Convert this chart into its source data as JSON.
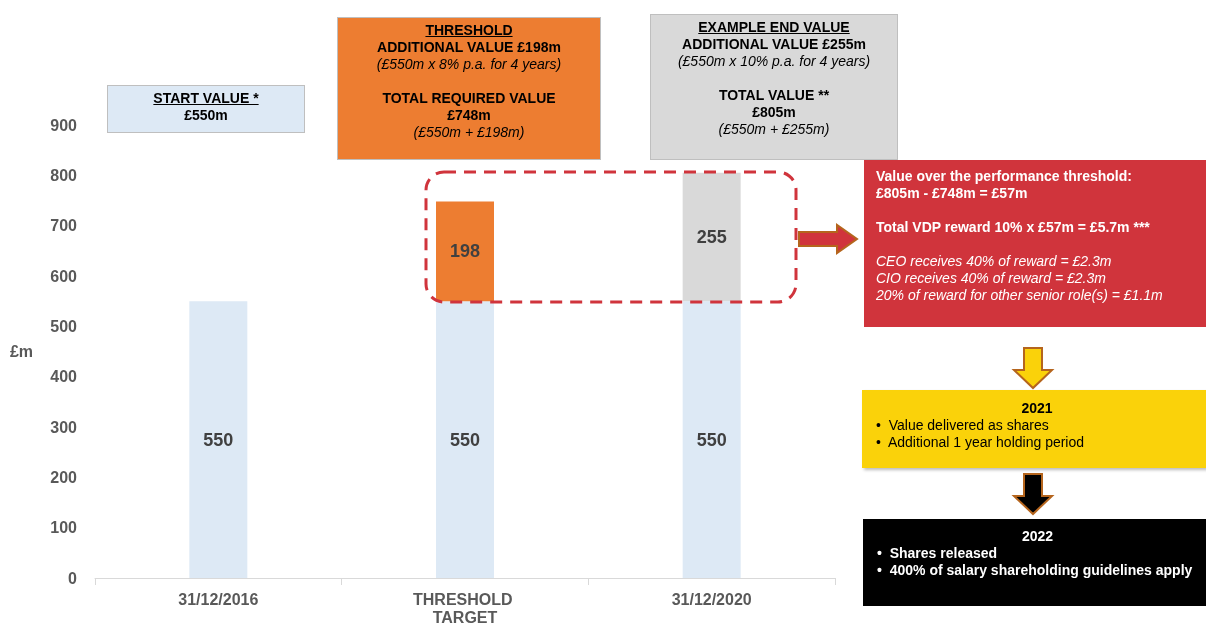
{
  "chart_data": {
    "type": "bar",
    "stacked": true,
    "data_labels": true,
    "ylabel": "£m",
    "categories": [
      "31/12/2016",
      "THRESHOLD TARGET",
      "31/12/2020"
    ],
    "series": [
      {
        "color": "#dde9f5",
        "values": [
          550,
          550,
          550
        ]
      },
      {
        "color": "#ed7d31",
        "colors": [
          "#ed7d31",
          "#ed7d31",
          "#d9d9d9"
        ],
        "values": [
          null,
          198,
          255
        ]
      }
    ],
    "ylim": [
      0,
      900
    ],
    "yticks": [
      0,
      100,
      200,
      300,
      400,
      500,
      600,
      700,
      800,
      900
    ],
    "annotations": [
      "START VALUE *\n£550m",
      "THRESHOLD\nADDITIONAL VALUE £198m\n(£550m x 8% p.a. for 4 years)\n\nTOTAL REQUIRED VALUE\n£748m\n(£550m + £198m)",
      "EXAMPLE END VALUE\nADDITIONAL VALUE £255m\n(£550m x 10% p.a. for 4 years)\n\nTOTAL VALUE **\n£805m\n(£550m + £255m)",
      "Value over the performance threshold:\n£805m - £748m = £57m\n\nTotal VDP reward  10% x £57m = £5.7m ***\n\nCEO receives 40% of reward = £2.3m\nCIO receives 40% of reward = £2.3m\n20% of reward for other senior role(s) = £1.1m",
      "2021\n•  Value delivered as shares\n•  Additional 1 year holding period",
      "2022\n•  Shares released\n•  400% of salary shareholding guidelines apply"
    ]
  }
}
